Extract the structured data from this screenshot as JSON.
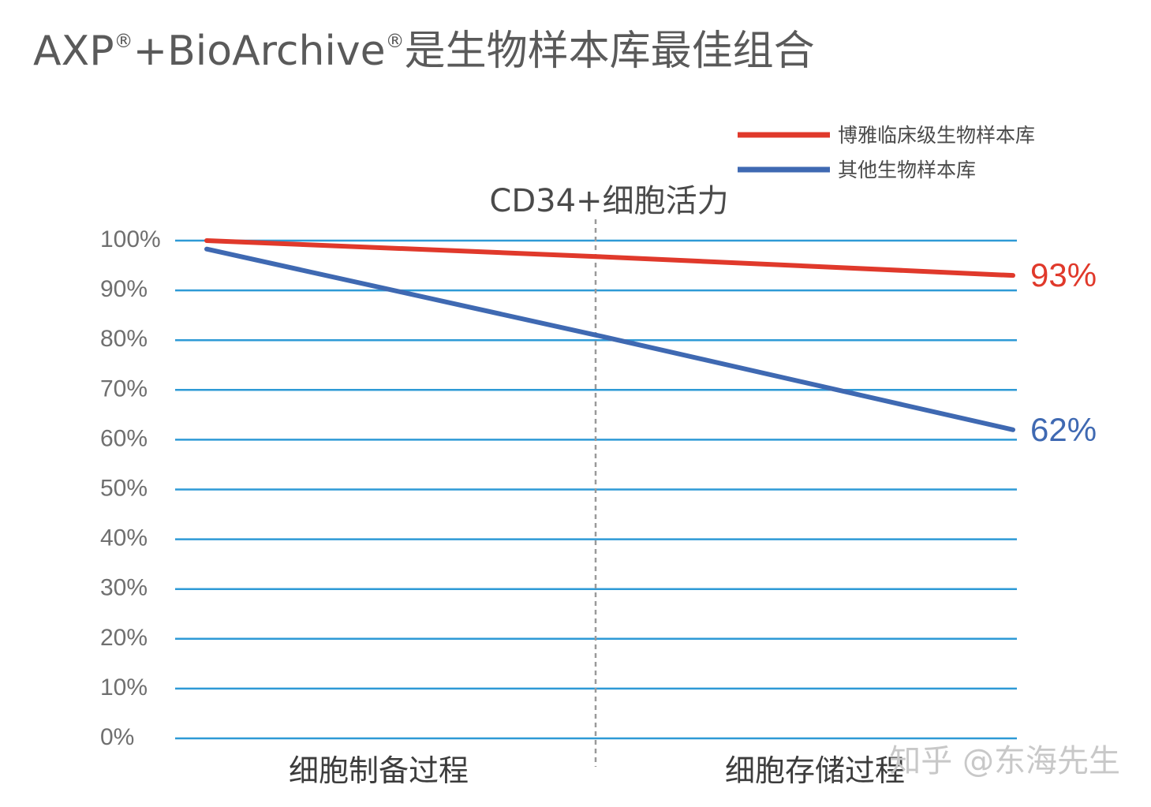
{
  "headline": {
    "part1": "AXP",
    "reg1": "®",
    "part2": "+BioArchive",
    "reg2": "®",
    "part3": "是生物样本库最佳组合"
  },
  "watermark": "知乎 @东海先生",
  "colors": {
    "red_series": "#e0392b",
    "blue_series": "#3f69b2",
    "gridline": "#2e9ad6",
    "divider": "#9a9a9a"
  },
  "chart_data": {
    "type": "line",
    "title": "CD34+细胞活力",
    "categories": [
      "细胞制备过程",
      "细胞存储过程"
    ],
    "x": [
      0,
      1,
      2
    ],
    "ylim": [
      0,
      100
    ],
    "yticks": [
      0,
      10,
      20,
      30,
      40,
      50,
      60,
      70,
      80,
      90,
      100
    ],
    "ytick_labels": [
      "0%",
      "10%",
      "20%",
      "30%",
      "40%",
      "50%",
      "60%",
      "70%",
      "80%",
      "90%",
      "100%"
    ],
    "grid": true,
    "legend_position": "top-right",
    "series": [
      {
        "name": "博雅临床级生物样本库",
        "color": "#e0392b",
        "values": [
          100,
          96.8,
          93
        ],
        "end_label": "93%"
      },
      {
        "name": "其他生物样本库",
        "color": "#3f69b2",
        "values": [
          98.3,
          81,
          62
        ],
        "end_label": "62%"
      }
    ]
  }
}
